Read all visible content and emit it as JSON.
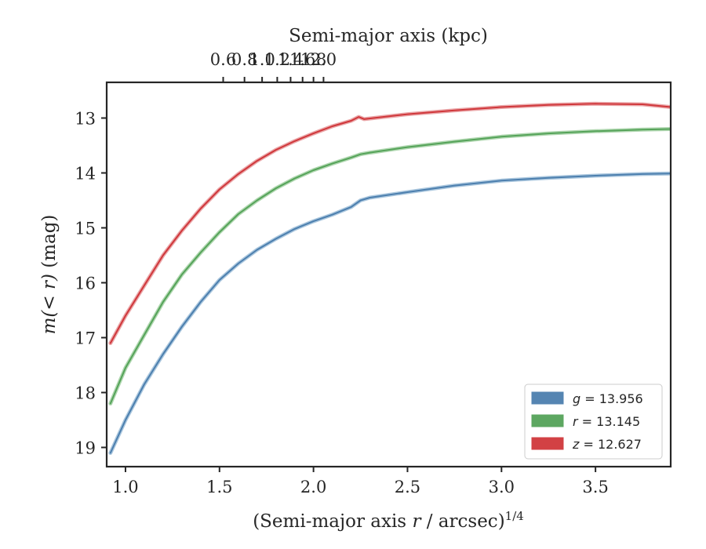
{
  "chart_data": {
    "type": "line",
    "title": "",
    "xlabel": "(Semi-major axis r / arcsec)^1/4",
    "xlabel_parts": {
      "prefix": "(Semi-major axis ",
      "var": "r",
      "suffix": " / arcsec)",
      "sup": "1/4"
    },
    "ylabel": "m(< r) (mag)",
    "ylabel_parts": {
      "math": "m(< r)",
      "unit": " (mag)"
    },
    "top_xlabel": "Semi-major axis (kpc)",
    "xlim": [
      0.9,
      3.9
    ],
    "ylim": [
      19.35,
      12.35
    ],
    "y_inverted": true,
    "x_ticks": [
      1.0,
      1.5,
      2.0,
      2.5,
      3.0,
      3.5
    ],
    "x_tick_labels": [
      "1.0",
      "1.5",
      "2.0",
      "2.5",
      "3.0",
      "3.5"
    ],
    "y_ticks": [
      13,
      14,
      15,
      16,
      17,
      18,
      19
    ],
    "y_tick_labels": [
      "13",
      "14",
      "15",
      "16",
      "17",
      "18",
      "19"
    ],
    "top_ticks": [
      0.6,
      0.8,
      1.0,
      1.2,
      1.4,
      1.6,
      1.8,
      2.0
    ],
    "top_tick_labels": [
      "0.6",
      "0.8",
      "1.0",
      "1.2",
      "1.4",
      "1.6",
      "1.8",
      "2.0"
    ],
    "top_scale": "kpc = 0.1125 * x^4",
    "legend_position": "lower right",
    "grid": false,
    "series": [
      {
        "name": "g = 13.956",
        "band": "g",
        "value": "13.956",
        "color": "#4c7fae",
        "model_color": "#8fb4d3",
        "x": [
          0.92,
          1.0,
          1.1,
          1.2,
          1.3,
          1.4,
          1.5,
          1.6,
          1.7,
          1.8,
          1.9,
          2.0,
          2.1,
          2.2,
          2.25,
          2.3,
          2.5,
          2.75,
          3.0,
          3.25,
          3.5,
          3.75,
          3.9
        ],
        "values": [
          19.1,
          18.5,
          17.85,
          17.3,
          16.8,
          16.35,
          15.95,
          15.65,
          15.4,
          15.2,
          15.02,
          14.88,
          14.76,
          14.62,
          14.5,
          14.45,
          14.35,
          14.23,
          14.14,
          14.09,
          14.05,
          14.02,
          14.01
        ]
      },
      {
        "name": "r = 13.145",
        "band": "r",
        "value": "13.145",
        "color": "#55a359",
        "model_color": "#96c996",
        "x": [
          0.92,
          1.0,
          1.1,
          1.2,
          1.3,
          1.4,
          1.5,
          1.6,
          1.7,
          1.8,
          1.9,
          2.0,
          2.1,
          2.2,
          2.25,
          2.3,
          2.5,
          2.75,
          3.0,
          3.25,
          3.5,
          3.75,
          3.9
        ],
        "values": [
          18.2,
          17.55,
          16.95,
          16.35,
          15.85,
          15.45,
          15.08,
          14.75,
          14.5,
          14.28,
          14.1,
          13.95,
          13.83,
          13.72,
          13.66,
          13.63,
          13.53,
          13.43,
          13.34,
          13.28,
          13.24,
          13.21,
          13.2
        ]
      },
      {
        "name": "z = 12.627",
        "band": "z",
        "value": "12.627",
        "color": "#d0373b",
        "model_color": "#e38a8c",
        "x": [
          0.92,
          1.0,
          1.1,
          1.2,
          1.3,
          1.4,
          1.5,
          1.6,
          1.7,
          1.8,
          1.9,
          2.0,
          2.1,
          2.2,
          2.24,
          2.27,
          2.5,
          2.75,
          3.0,
          3.25,
          3.5,
          3.75,
          3.9
        ],
        "values": [
          17.1,
          16.6,
          16.05,
          15.5,
          15.05,
          14.65,
          14.3,
          14.02,
          13.78,
          13.58,
          13.42,
          13.28,
          13.15,
          13.05,
          12.98,
          13.02,
          12.93,
          12.86,
          12.8,
          12.76,
          12.74,
          12.75,
          12.8
        ]
      }
    ]
  }
}
